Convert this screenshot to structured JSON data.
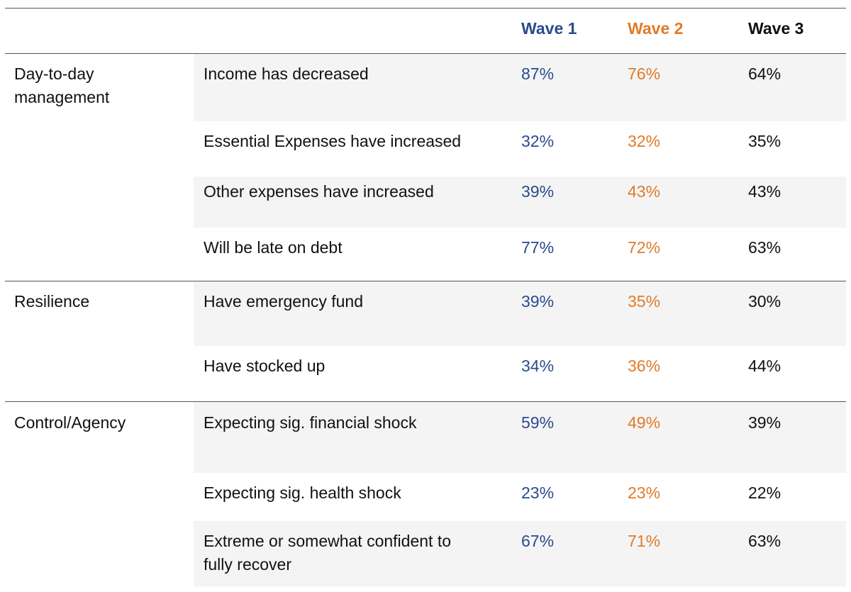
{
  "colors": {
    "wave1": "#2a4b8d",
    "wave2": "#e07b28",
    "wave3": "#111111",
    "row_shade": "#f4f4f4",
    "rule": "#555555"
  },
  "headers": [
    "Wave 1",
    "Wave 2",
    "Wave 3"
  ],
  "groups": [
    {
      "label_lines": [
        "Day-to-day",
        "management"
      ],
      "rows": [
        {
          "label_lines": [
            "Income has decreased"
          ],
          "values": [
            "87%",
            "76%",
            "64%"
          ]
        },
        {
          "label_lines": [
            "Essential Expenses have increased"
          ],
          "values": [
            "32%",
            "32%",
            "35%"
          ]
        },
        {
          "label_lines": [
            "Other expenses have increased"
          ],
          "values": [
            "39%",
            "43%",
            "43%"
          ]
        },
        {
          "label_lines": [
            "Will be late on debt"
          ],
          "values": [
            "77%",
            "72%",
            "63%"
          ]
        }
      ]
    },
    {
      "label_lines": [
        "Resilience"
      ],
      "rows": [
        {
          "label_lines": [
            "Have emergency fund"
          ],
          "values": [
            "39%",
            "35%",
            "30%"
          ]
        },
        {
          "label_lines": [
            "Have stocked up"
          ],
          "values": [
            "34%",
            "36%",
            "44%"
          ]
        }
      ]
    },
    {
      "label_lines": [
        "Control/Agency"
      ],
      "rows": [
        {
          "label_lines": [
            "Expecting sig. financial shock"
          ],
          "values": [
            "59%",
            "49%",
            "39%"
          ]
        },
        {
          "label_lines": [
            "Expecting sig. health shock"
          ],
          "values": [
            "23%",
            "23%",
            "22%"
          ]
        },
        {
          "label_lines": [
            "Extreme or somewhat confident to",
            "fully recover"
          ],
          "values": [
            "67%",
            "71%",
            "63%"
          ]
        }
      ]
    }
  ]
}
